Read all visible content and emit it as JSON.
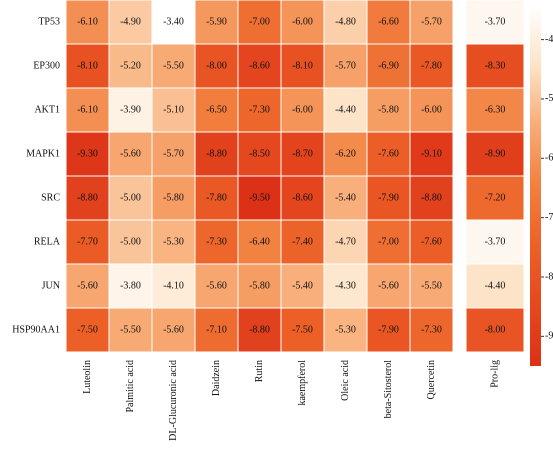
{
  "chart_data": {
    "type": "heatmap",
    "rows": [
      "TP53",
      "EP300",
      "AKT1",
      "MAPK1",
      "SRC",
      "RELA",
      "JUN",
      "HSP90AA1"
    ],
    "columns": [
      "Luteolin",
      "Palmitic acid",
      "DL-Glucuronic acid",
      "Daidzein",
      "Rutin",
      "kaempferol",
      "Oleic acid",
      "beta-Sitosterol",
      "Quercetin",
      "Pro-lig"
    ],
    "values": [
      [
        -6.1,
        -4.9,
        -3.4,
        -5.9,
        -7.0,
        -6.0,
        -4.8,
        -6.6,
        -5.7,
        -3.7
      ],
      [
        -8.1,
        -5.2,
        -5.5,
        -8.0,
        -8.6,
        -8.1,
        -5.7,
        -6.9,
        -7.8,
        -8.3
      ],
      [
        -6.1,
        -3.9,
        -5.1,
        -6.5,
        -7.3,
        -6.0,
        -4.4,
        -5.8,
        -6.0,
        -6.3
      ],
      [
        -9.3,
        -5.6,
        -5.7,
        -8.8,
        -8.5,
        -8.7,
        -6.2,
        -7.6,
        -9.1,
        -8.9
      ],
      [
        -8.8,
        -5.0,
        -5.8,
        -7.8,
        -9.5,
        -8.6,
        -5.4,
        -7.9,
        -8.8,
        -7.2
      ],
      [
        -7.7,
        -5.0,
        -5.3,
        -7.3,
        -6.4,
        -7.4,
        -4.7,
        -7.0,
        -7.6,
        -3.7
      ],
      [
        -5.6,
        -3.8,
        -4.1,
        -5.6,
        -5.8,
        -5.4,
        -4.3,
        -5.6,
        -5.5,
        -4.4
      ],
      [
        -7.5,
        -5.5,
        -5.6,
        -7.1,
        -8.8,
        -7.5,
        -5.3,
        -7.9,
        -7.3,
        -8.0
      ]
    ],
    "value_labels": [
      [
        "-6.10",
        "-4.90",
        "-3.40",
        "-5.90",
        "-7.00",
        "-6.00",
        "-4.80",
        "-6.60",
        "-5.70",
        "-3.70"
      ],
      [
        "-8.10",
        "-5.20",
        "-5.50",
        "-8.00",
        "-8.60",
        "-8.10",
        "-5.70",
        "-6.90",
        "-7.80",
        "-8.30"
      ],
      [
        "-6.10",
        "-3.90",
        "-5.10",
        "-6.50",
        "-7.30",
        "-6.00",
        "-4.40",
        "-5.80",
        "-6.00",
        "-6.30"
      ],
      [
        "-9.30",
        "-5.60",
        "-5.70",
        "-8.80",
        "-8.50",
        "-8.70",
        "-6.20",
        "-7.60",
        "-9.10",
        "-8.90"
      ],
      [
        "-8.80",
        "-5.00",
        "-5.80",
        "-7.80",
        "-9.50",
        "-8.60",
        "-5.40",
        "-7.90",
        "-8.80",
        "-7.20"
      ],
      [
        "-7.70",
        "-5.00",
        "-5.30",
        "-7.30",
        "-6.40",
        "-7.40",
        "-4.70",
        "-7.00",
        "-7.60",
        "-3.70"
      ],
      [
        "-5.60",
        "-3.80",
        "-4.10",
        "-5.60",
        "-5.80",
        "-5.40",
        "-4.30",
        "-5.60",
        "-5.50",
        "-4.40"
      ],
      [
        "-7.50",
        "-5.50",
        "-5.60",
        "-7.10",
        "-8.80",
        "-7.50",
        "-5.30",
        "-7.90",
        "-7.30",
        "-8.00"
      ]
    ],
    "zlim": [
      -3.4,
      -9.5
    ],
    "zticks": [
      -4,
      -5,
      -6,
      -7,
      -8,
      -9
    ],
    "colorscale": [
      "#ffffff",
      "#fde4c8",
      "#f8ad78",
      "#f2803f",
      "#ec6128",
      "#e5481f",
      "#dc3117"
    ]
  }
}
